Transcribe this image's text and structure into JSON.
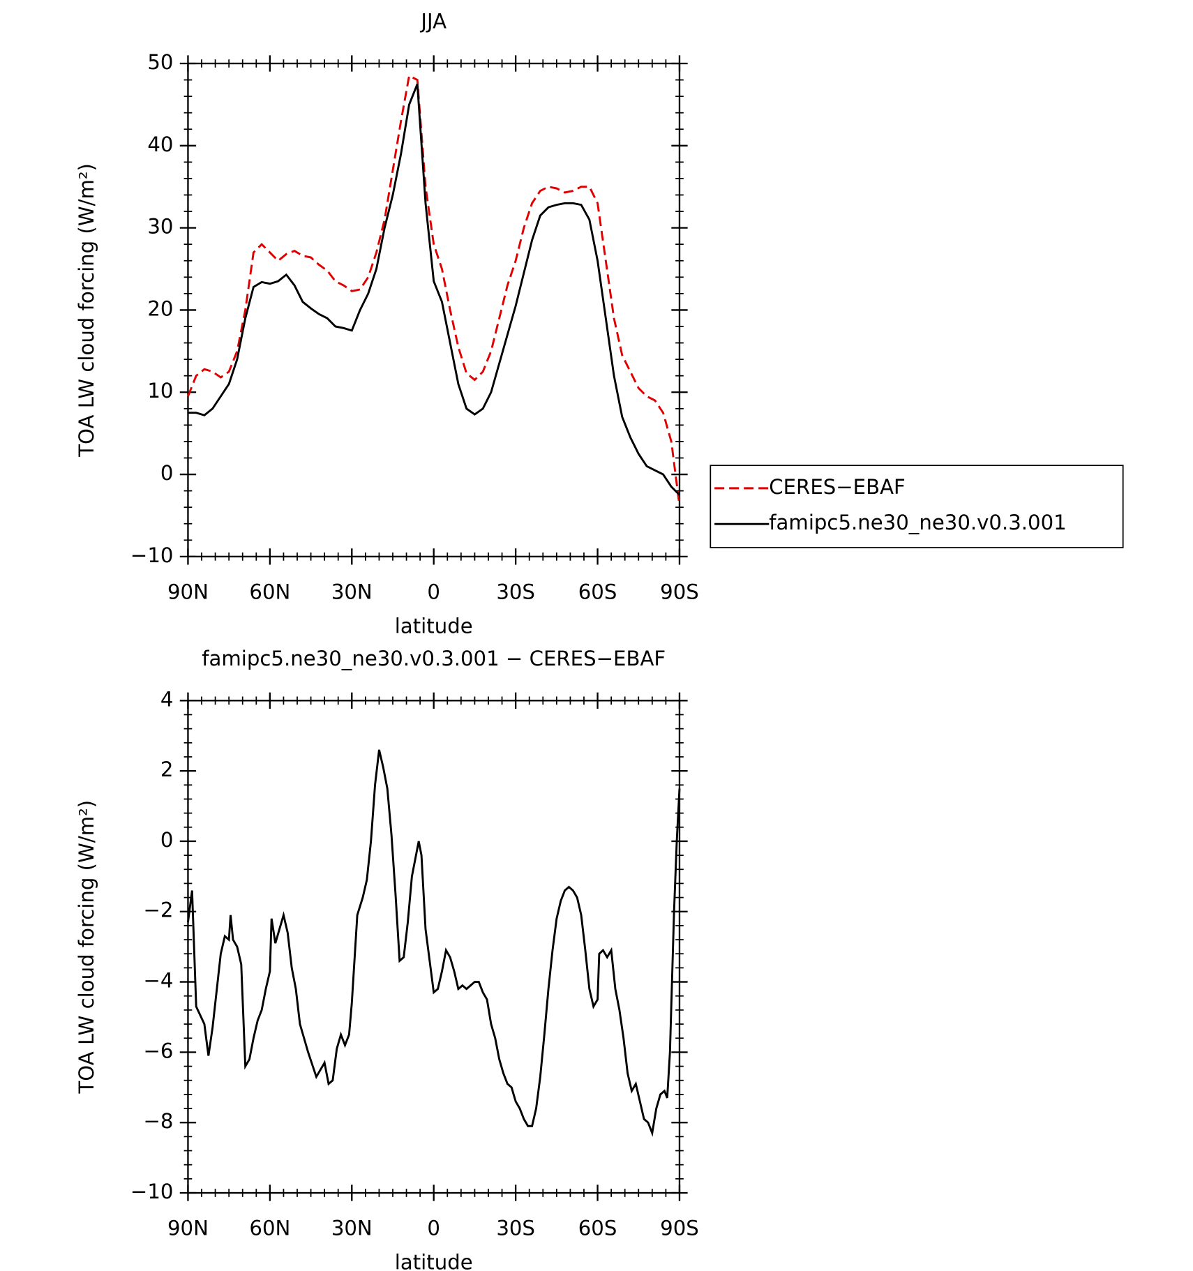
{
  "chart_data": [
    {
      "type": "line",
      "title": "JJA",
      "xlabel": "latitude",
      "ylabel": "TOA LW cloud forcing (W/m²)",
      "xlim": [
        90,
        -90
      ],
      "ylim": [
        -10,
        50
      ],
      "xticks": [
        {
          "value": 90,
          "label": "90N"
        },
        {
          "value": 60,
          "label": "60N"
        },
        {
          "value": 30,
          "label": "30N"
        },
        0,
        {
          "value": -30,
          "label": "30S"
        },
        {
          "value": -60,
          "label": "60S"
        },
        {
          "value": -90,
          "label": "90S"
        }
      ],
      "yticks": [
        -10,
        0,
        10,
        20,
        30,
        40,
        50
      ],
      "legend": "right",
      "x": [
        90,
        87,
        84,
        81,
        78,
        75,
        72,
        69,
        66,
        63,
        60,
        57,
        54,
        51,
        48,
        45,
        42,
        39,
        36,
        33,
        30,
        27,
        24,
        21,
        18,
        15,
        12,
        9,
        6,
        3,
        0,
        -3,
        -6,
        -9,
        -12,
        -15,
        -18,
        -21,
        -24,
        -27,
        -30,
        -33,
        -36,
        -39,
        -42,
        -45,
        -48,
        -51,
        -54,
        -57,
        -60,
        -63,
        -66,
        -69,
        -72,
        -75,
        -78,
        -81,
        -84,
        -87,
        -90
      ],
      "series": [
        {
          "name": "CERES−EBAF",
          "color": "#e00000",
          "dash": "dashed",
          "values": [
            9.5,
            12,
            12.8,
            12.5,
            11.8,
            12.5,
            15,
            20,
            27,
            28,
            27,
            26,
            26.8,
            27.2,
            26.6,
            26.4,
            25.5,
            24.8,
            23.5,
            23,
            22.3,
            22.5,
            24,
            27,
            31,
            37,
            43,
            48.5,
            48,
            35,
            28,
            25,
            20,
            15.5,
            12.3,
            11.5,
            12.5,
            15,
            19,
            23,
            26,
            30,
            33,
            34.5,
            35,
            34.8,
            34.3,
            34.5,
            35,
            35,
            33,
            26,
            19,
            14.5,
            12.5,
            10.5,
            9.5,
            9,
            7.5,
            4,
            -3.8
          ]
        },
        {
          "name": "famipc5.ne30_ne30.v0.3.001",
          "color": "#000000",
          "dash": "solid",
          "values": [
            7.5,
            7.5,
            7.2,
            8,
            9.5,
            11,
            14,
            19,
            22.8,
            23.4,
            23.2,
            23.5,
            24.3,
            23,
            21,
            20.2,
            19.5,
            19,
            18,
            17.8,
            17.5,
            20,
            22,
            25,
            30,
            34,
            39,
            45,
            47.5,
            33,
            23.5,
            21,
            16,
            11,
            8,
            7.3,
            8,
            10,
            13.5,
            17,
            20.5,
            24.5,
            28.5,
            31.5,
            32.5,
            32.8,
            33,
            33,
            32.8,
            31,
            26,
            19,
            12,
            7,
            4.5,
            2.5,
            1,
            0.5,
            0,
            -1.5,
            -2.5
          ]
        }
      ]
    },
    {
      "type": "line",
      "title": "famipc5.ne30_ne30.v0.3.001 − CERES−EBAF",
      "xlabel": "latitude",
      "ylabel": "TOA LW cloud forcing (W/m²)",
      "xlim": [
        90,
        -90
      ],
      "ylim": [
        -10,
        4
      ],
      "xticks": [
        {
          "value": 90,
          "label": "90N"
        },
        {
          "value": 60,
          "label": "60N"
        },
        {
          "value": 30,
          "label": "30N"
        },
        0,
        {
          "value": -30,
          "label": "30S"
        },
        {
          "value": -60,
          "label": "60S"
        },
        {
          "value": -90,
          "label": "90S"
        }
      ],
      "yticks": [
        -10,
        -8,
        -6,
        -4,
        -2,
        0,
        2,
        4
      ],
      "x": [
        90,
        88.5,
        87,
        84,
        82.5,
        81,
        78,
        76.5,
        75,
        74.4,
        73.5,
        72,
        70.5,
        69,
        67.5,
        66,
        64.5,
        63,
        61.5,
        60,
        59.4,
        58,
        56.5,
        55,
        53.5,
        52,
        50.5,
        49,
        47.5,
        46,
        43,
        40,
        38.5,
        37,
        35.5,
        34,
        32.5,
        31,
        30,
        28,
        26,
        24.5,
        23,
        21.5,
        20,
        18.5,
        17,
        15.5,
        14,
        12.5,
        11,
        9.5,
        8,
        6.5,
        5.5,
        4.5,
        3,
        1.5,
        0,
        -1.5,
        -3,
        -4.5,
        -6,
        -7.5,
        -9,
        -10.5,
        -12,
        -13.5,
        -15,
        -16.5,
        -18,
        -19.5,
        -21,
        -22.5,
        -24,
        -25.5,
        -27,
        -28.5,
        -30,
        -31.5,
        -33,
        -34.5,
        -36,
        -37.5,
        -39,
        -40.5,
        -42,
        -43.5,
        -45,
        -46.5,
        -48,
        -49.5,
        -51,
        -52.5,
        -54,
        -55.5,
        -57,
        -58.5,
        -60,
        -60.6,
        -62,
        -63.5,
        -65,
        -66.5,
        -68,
        -69.5,
        -71,
        -72.5,
        -74,
        -75.5,
        -77,
        -78.5,
        -80,
        -81.5,
        -83,
        -84.5,
        -85.5,
        -86.5,
        -88,
        -89,
        -90
      ],
      "series": [
        {
          "color": "#000000",
          "dash": "solid",
          "values": [
            -2.3,
            -1.4,
            -4.7,
            -5.2,
            -6.1,
            -5.3,
            -3.2,
            -2.7,
            -2.8,
            -2.1,
            -2.8,
            -3,
            -3.5,
            -6.4,
            -6.2,
            -5.6,
            -5.1,
            -4.8,
            -4.2,
            -3.7,
            -2.2,
            -2.9,
            -2.5,
            -2.1,
            -2.6,
            -3.6,
            -4.2,
            -5.2,
            -5.6,
            -6,
            -6.7,
            -6.3,
            -6.9,
            -6.8,
            -5.9,
            -5.5,
            -5.8,
            -5.5,
            -4.6,
            -2.1,
            -1.6,
            -1.1,
            0,
            1.6,
            2.6,
            2.1,
            1.5,
            0.2,
            -1.5,
            -3.4,
            -3.3,
            -2.3,
            -1,
            -0.4,
            0,
            -0.4,
            -2.5,
            -3.4,
            -4.3,
            -4.2,
            -3.7,
            -3.1,
            -3.3,
            -3.7,
            -4.2,
            -4.1,
            -4.2,
            -4.1,
            -4,
            -4,
            -4.3,
            -4.5,
            -5.2,
            -5.6,
            -6.2,
            -6.6,
            -6.9,
            -7,
            -7.4,
            -7.6,
            -7.9,
            -8.1,
            -8.1,
            -7.6,
            -6.7,
            -5.5,
            -4.2,
            -3.1,
            -2.2,
            -1.7,
            -1.4,
            -1.3,
            -1.4,
            -1.6,
            -2.1,
            -3.1,
            -4.2,
            -4.7,
            -4.5,
            -3.2,
            -3.1,
            -3.3,
            -3.1,
            -4.2,
            -4.8,
            -5.6,
            -6.6,
            -7.1,
            -6.9,
            -7.4,
            -7.9,
            -8,
            -8.3,
            -7.6,
            -7.2,
            -7.1,
            -7.3,
            -6,
            -2,
            0,
            1.5
          ]
        }
      ]
    }
  ]
}
